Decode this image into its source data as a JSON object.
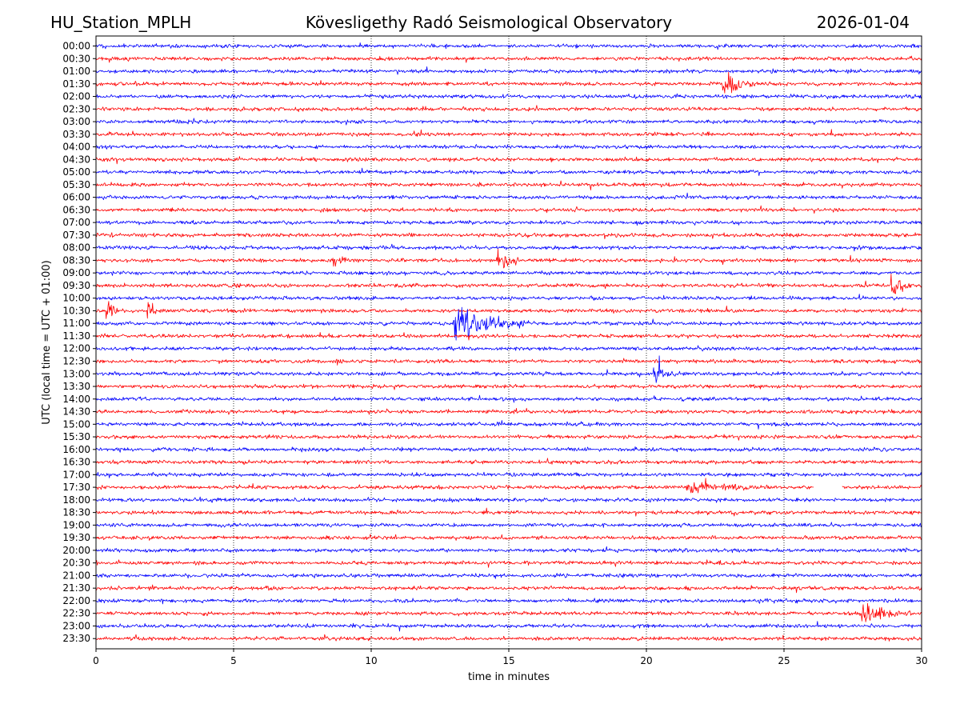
{
  "header": {
    "station": "HU_Station_MPLH",
    "observatory": "Kövesligethy Radó Seismological Observatory",
    "date": "2026-01-04"
  },
  "chart_data": {
    "type": "line",
    "title": "Kövesligethy Radó Seismological Observatory",
    "xlabel": "time in minutes",
    "ylabel": "UTC (local time = UTC + 01:00)",
    "xlim": [
      0,
      30
    ],
    "xticks": [
      0,
      5,
      10,
      15,
      20,
      25,
      30
    ],
    "grid": "vertical dotted at each x tick",
    "colors": [
      "#0000ff",
      "#ff0000"
    ],
    "rows": [
      "00:00",
      "00:30",
      "01:00",
      "01:30",
      "02:00",
      "02:30",
      "03:00",
      "03:30",
      "04:00",
      "04:30",
      "05:00",
      "05:30",
      "06:00",
      "06:30",
      "07:00",
      "07:30",
      "08:00",
      "08:30",
      "09:00",
      "09:30",
      "10:00",
      "10:30",
      "11:00",
      "11:30",
      "12:00",
      "12:30",
      "13:00",
      "13:30",
      "14:00",
      "14:30",
      "15:00",
      "15:30",
      "16:00",
      "16:30",
      "17:00",
      "17:30",
      "18:00",
      "18:30",
      "19:00",
      "19:30",
      "20:00",
      "20:30",
      "21:00",
      "21:30",
      "22:00",
      "22:30",
      "23:00",
      "23:30"
    ],
    "events": [
      {
        "row": "01:30",
        "minute": 22.8,
        "amplitude": 2.6,
        "duration": 1.2
      },
      {
        "row": "08:30",
        "minute": 14.6,
        "amplitude": 2.4,
        "duration": 0.8
      },
      {
        "row": "08:30",
        "minute": 8.6,
        "amplitude": 1.3,
        "duration": 0.5
      },
      {
        "row": "09:30",
        "minute": 28.9,
        "amplitude": 2.4,
        "duration": 0.8
      },
      {
        "row": "10:30",
        "minute": 0.4,
        "amplitude": 1.8,
        "duration": 0.4
      },
      {
        "row": "10:30",
        "minute": 1.9,
        "amplitude": 1.6,
        "duration": 0.3
      },
      {
        "row": "11:00",
        "minute": 13.0,
        "amplitude": 4.5,
        "duration": 3.0
      },
      {
        "row": "13:00",
        "minute": 20.3,
        "amplitude": 1.5,
        "duration": 1.0
      },
      {
        "row": "17:30",
        "minute": 21.5,
        "amplitude": 1.2,
        "duration": 2.8
      },
      {
        "row": "22:30",
        "minute": 27.8,
        "amplitude": 2.2,
        "duration": 1.8
      }
    ],
    "gaps": [
      {
        "row": "17:30",
        "from": 26.1,
        "to": 27.1
      }
    ]
  }
}
